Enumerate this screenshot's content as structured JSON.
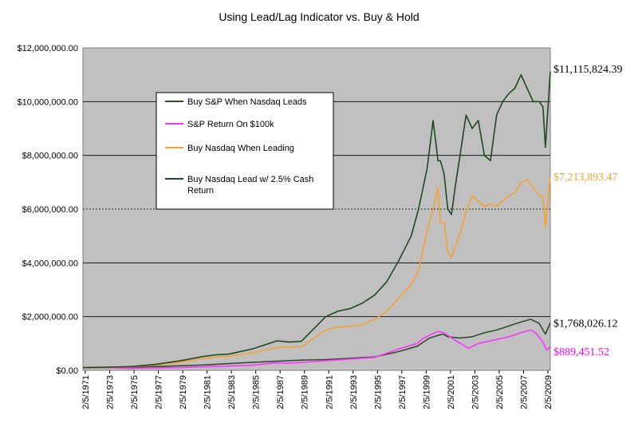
{
  "chart_data": {
    "type": "line",
    "title": "Using Lead/Lag Indicator vs. Buy & Hold",
    "xlabel": "",
    "ylabel": "",
    "ylim": [
      0,
      12000000
    ],
    "y_ticks": [
      "$0.00",
      "$2,000,000.00",
      "$4,000,000.00",
      "$6,000,000.00",
      "$8,000,000.00",
      "$10,000,000.00",
      "$12,000,000.00"
    ],
    "y_tick_values": [
      0,
      2000000,
      4000000,
      6000000,
      8000000,
      10000000,
      12000000
    ],
    "x_ticks": [
      "2/5/1971",
      "2/5/1973",
      "2/5/1975",
      "2/5/1977",
      "2/5/1979",
      "2/5/1981",
      "2/5/1983",
      "2/5/1985",
      "2/5/1987",
      "2/5/1989",
      "2/5/1991",
      "2/5/1993",
      "2/5/1995",
      "2/5/1997",
      "2/5/1999",
      "2/5/2001",
      "2/5/2003",
      "2/5/2005",
      "2/5/2007",
      "2/5/2009"
    ],
    "xlim": [
      1971.1,
      2009.4
    ],
    "grid": "horizontal",
    "legend_position": "upper-left inside plot",
    "series": [
      {
        "name": "Buy S&P When Nasdaq Leads",
        "color": "#2e4e2e",
        "end_label": "$1,768,026.12",
        "end_label_color": "#000000",
        "x": [
          1971.1,
          1973,
          1975,
          1977,
          1979,
          1981,
          1983,
          1985,
          1987,
          1989,
          1991,
          1993,
          1995,
          1997,
          1998.5,
          1999.5,
          2000.2,
          2000.6,
          2001,
          2002,
          2003,
          2004,
          2005,
          2006,
          2007,
          2007.8,
          2008.5,
          2008.8,
          2009,
          2009.4
        ],
        "y": [
          100000,
          108000,
          120000,
          140000,
          170000,
          200000,
          250000,
          300000,
          340000,
          380000,
          400000,
          450000,
          500000,
          700000,
          900000,
          1200000,
          1300000,
          1350000,
          1250000,
          1200000,
          1250000,
          1400000,
          1500000,
          1650000,
          1800000,
          1900000,
          1750000,
          1500000,
          1350000,
          1768026
        ]
      },
      {
        "name": "S&P Return On $100k",
        "color": "#ff33ff",
        "end_label": "$889,451.52",
        "end_label_color": "#ff00ff",
        "x": [
          1971.1,
          1973,
          1974.8,
          1977,
          1979,
          1981,
          1983,
          1985,
          1987,
          1988,
          1991,
          1993,
          1995,
          1997,
          1998.5,
          1999,
          2000.2,
          2000.7,
          2001.5,
          2002.7,
          2003.5,
          2004.5,
          2006,
          2007,
          2007.8,
          2008.2,
          2008.8,
          2009.1,
          2009.4
        ],
        "y": [
          100000,
          110000,
          70000,
          95000,
          100000,
          130000,
          160000,
          190000,
          280000,
          260000,
          360000,
          420000,
          480000,
          800000,
          1000000,
          1200000,
          1450000,
          1400000,
          1150000,
          820000,
          1000000,
          1100000,
          1250000,
          1400000,
          1500000,
          1400000,
          1050000,
          750000,
          889452
        ]
      },
      {
        "name": "Buy Nasdaq When Leading",
        "color": "#f7a032",
        "end_label": "$7,213,893.47",
        "end_label_color": "#f7a032",
        "x": [
          1971.1,
          1973,
          1975,
          1977,
          1979,
          1981,
          1982,
          1983,
          1985,
          1987,
          1988,
          1989,
          1991,
          1992,
          1993,
          1994,
          1995,
          1996,
          1997,
          1998,
          1998.6,
          1999.3,
          1999.8,
          2000.2,
          2000.4,
          2000.7,
          2001,
          2001.3,
          2001.6,
          2002,
          2002.5,
          2003,
          2003.5,
          2004,
          2004.5,
          2005,
          2005.5,
          2006,
          2006.5,
          2007,
          2007.5,
          2008,
          2008.5,
          2008.8,
          2009,
          2009.4
        ],
        "y": [
          100000,
          110000,
          130000,
          200000,
          300000,
          450000,
          500000,
          520000,
          650000,
          850000,
          870000,
          880000,
          1500000,
          1600000,
          1650000,
          1700000,
          1900000,
          2200000,
          2700000,
          3200000,
          3700000,
          5200000,
          6000000,
          6800000,
          5500000,
          5500000,
          4400000,
          4200000,
          4600000,
          5100000,
          5900000,
          6500000,
          6300000,
          6100000,
          6200000,
          6100000,
          6300000,
          6500000,
          6600000,
          7000000,
          7100000,
          6800000,
          6500000,
          6500000,
          5300000,
          7213893
        ]
      },
      {
        "name": "Buy Nasdaq Lead  w/ 2.5% Cash Return",
        "color": "#1e4a1e",
        "end_label": "$11,115,824.39",
        "end_label_color": "#000000",
        "x": [
          1971.1,
          1973,
          1975,
          1977,
          1979,
          1981,
          1982,
          1983,
          1985,
          1987,
          1988,
          1989,
          1991,
          1992,
          1993,
          1994,
          1995,
          1996,
          1997,
          1998,
          1998.6,
          1999.3,
          1999.8,
          2000.2,
          2000.4,
          2000.7,
          2001,
          2001.3,
          2001.6,
          2002,
          2002.5,
          2003,
          2003.5,
          2004,
          2004.5,
          2005,
          2005.5,
          2006,
          2006.5,
          2007,
          2007.5,
          2008,
          2008.5,
          2008.8,
          2009,
          2009.4
        ],
        "y": [
          100000,
          115000,
          140000,
          220000,
          350000,
          520000,
          580000,
          600000,
          800000,
          1100000,
          1050000,
          1080000,
          2000000,
          2200000,
          2300000,
          2500000,
          2800000,
          3300000,
          4100000,
          5000000,
          6000000,
          7500000,
          9300000,
          7800000,
          7800000,
          7300000,
          6000000,
          5800000,
          6800000,
          8000000,
          9500000,
          9000000,
          9300000,
          8000000,
          7800000,
          9500000,
          10000000,
          10300000,
          10500000,
          11000000,
          10500000,
          10000000,
          10000000,
          9800000,
          8300000,
          11115824
        ]
      }
    ]
  }
}
